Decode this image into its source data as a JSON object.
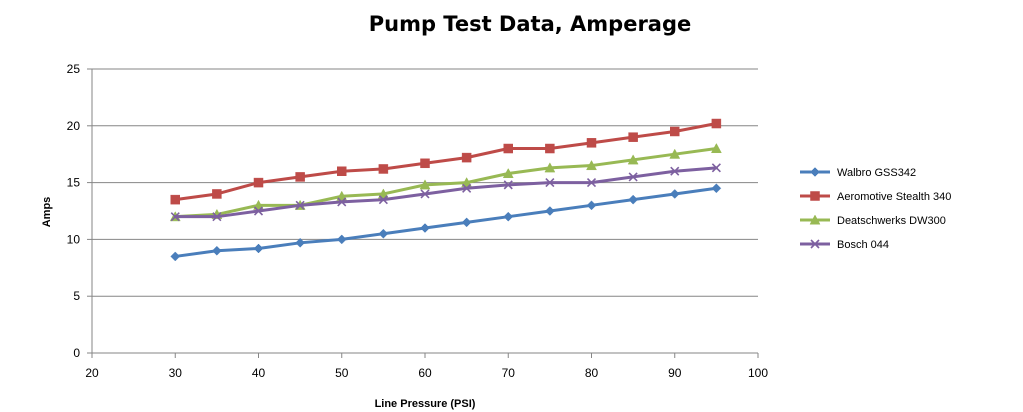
{
  "chart_data": {
    "type": "line",
    "title": "Pump Test Data, Amperage",
    "xlabel": "Line Pressure (PSI)",
    "ylabel": "Amps",
    "xlim": [
      20,
      100
    ],
    "ylim": [
      0,
      25
    ],
    "xticks": [
      20,
      30,
      40,
      50,
      60,
      70,
      80,
      90,
      100
    ],
    "yticks": [
      0,
      5,
      10,
      15,
      20,
      25
    ],
    "grid": "horizontal",
    "legend_position": "right",
    "x": [
      30,
      35,
      40,
      45,
      50,
      55,
      60,
      65,
      70,
      75,
      80,
      85,
      90,
      95
    ],
    "series": [
      {
        "name": "Walbro GSS342",
        "color": "#4a7ebb",
        "marker": "diamond",
        "values": [
          8.5,
          9.0,
          9.2,
          9.7,
          10.0,
          10.5,
          11.0,
          11.5,
          12.0,
          12.5,
          13.0,
          13.5,
          14.0,
          14.5
        ]
      },
      {
        "name": "Aeromotive Stealth  340",
        "color": "#be4b48",
        "marker": "square",
        "values": [
          13.5,
          14.0,
          15.0,
          15.5,
          16.0,
          16.2,
          16.7,
          17.2,
          18.0,
          18.0,
          18.5,
          19.0,
          19.5,
          20.2
        ]
      },
      {
        "name": "Deatschwerks DW300",
        "color": "#98b954",
        "marker": "triangle",
        "values": [
          12.0,
          12.2,
          13.0,
          13.0,
          13.8,
          14.0,
          14.8,
          15.0,
          15.8,
          16.3,
          16.5,
          17.0,
          17.5,
          18.0
        ]
      },
      {
        "name": "Bosch 044",
        "color": "#7d60a0",
        "marker": "x",
        "values": [
          12.0,
          12.0,
          12.5,
          13.0,
          13.3,
          13.5,
          14.0,
          14.5,
          14.8,
          15.0,
          15.0,
          15.5,
          16.0,
          16.3
        ]
      }
    ]
  }
}
